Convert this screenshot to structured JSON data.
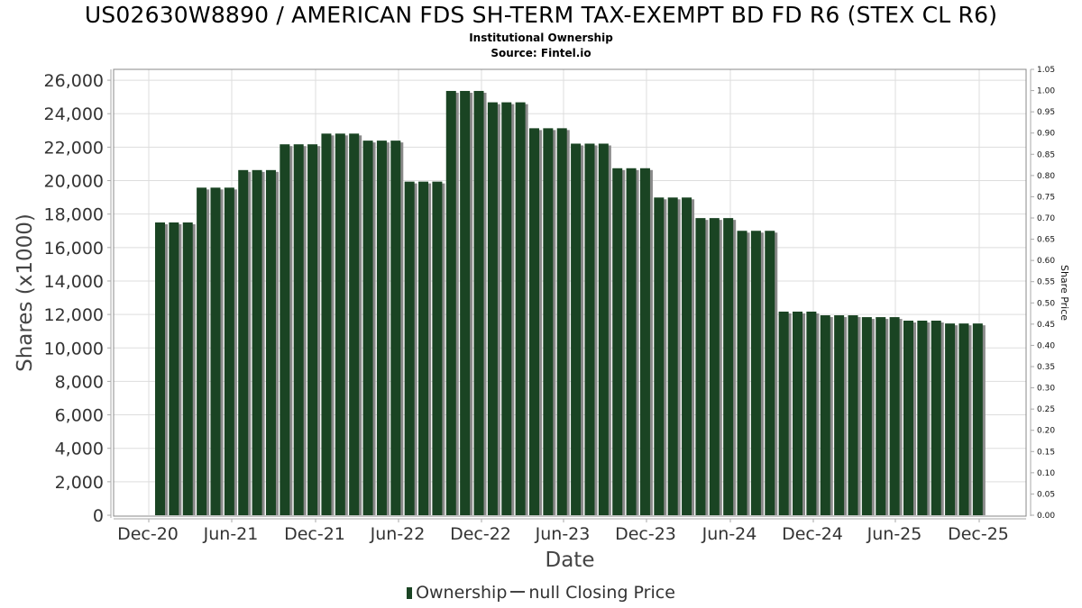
{
  "header": {
    "title": "US02630W8890 / AMERICAN FDS SH-TERM TAX-EXEMPT BD FD R6 (STEX CL R6)",
    "subtitle": "Institutional Ownership",
    "source": "Source: Fintel.io"
  },
  "legend": {
    "ownership_label": "Ownership",
    "price_label": "null Closing Price"
  },
  "colors": {
    "bar": "#1a4423",
    "bar_shadow": "#8a8a8a",
    "grid": "#dddddd",
    "axis": "#888888"
  },
  "chart_data": {
    "type": "bar",
    "title": "US02630W8890 / AMERICAN FDS SH-TERM TAX-EXEMPT BD FD R6 (STEX CL R6)",
    "subtitle": "Institutional Ownership",
    "source": "Source: Fintel.io",
    "xlabel": "Date",
    "ylabel": "Shares (x1000)",
    "ylabel_right": "Share Price",
    "ylim": [
      0,
      26650
    ],
    "ylim_right": [
      0,
      1.05
    ],
    "yticks": [
      0,
      2000,
      4000,
      6000,
      8000,
      10000,
      12000,
      14000,
      16000,
      18000,
      20000,
      22000,
      24000,
      26000
    ],
    "ytick_labels": [
      "0",
      "2,000",
      "4,000",
      "6,000",
      "8,000",
      "10,000",
      "12,000",
      "14,000",
      "16,000",
      "18,000",
      "20,000",
      "22,000",
      "24,000",
      "26,000"
    ],
    "yticks_right": [
      "0.00",
      "0.05",
      "0.10",
      "0.15",
      "0.20",
      "0.25",
      "0.30",
      "0.35",
      "0.40",
      "0.45",
      "0.50",
      "0.55",
      "0.60",
      "0.65",
      "0.70",
      "0.75",
      "0.80",
      "0.85",
      "0.90",
      "0.95",
      "1.00",
      "1.05"
    ],
    "xtick_labels": [
      "Dec-20",
      "Jun-21",
      "Dec-21",
      "Jun-22",
      "Dec-22",
      "Jun-23",
      "Dec-23",
      "Jun-24",
      "Dec-24",
      "Jun-25",
      "Dec-25"
    ],
    "grid": true,
    "legend_position": "bottom",
    "series": [
      {
        "name": "Ownership",
        "type": "bar",
        "values": [
          17500,
          17500,
          17500,
          19580,
          19580,
          19580,
          20630,
          20630,
          20630,
          22170,
          22170,
          22170,
          22810,
          22810,
          22810,
          22390,
          22390,
          22390,
          19940,
          19940,
          19940,
          25360,
          25360,
          25360,
          24680,
          24680,
          24680,
          23130,
          23130,
          23130,
          22210,
          22210,
          22210,
          20740,
          20740,
          20740,
          18990,
          18990,
          18990,
          17760,
          17760,
          17760,
          17000,
          17000,
          17000,
          12170,
          12170,
          12170,
          11950,
          11950,
          11950,
          11840,
          11840,
          11840,
          11630,
          11630,
          11630,
          11460,
          11460,
          11460
        ]
      },
      {
        "name": "null Closing Price",
        "type": "line",
        "values": []
      }
    ]
  }
}
